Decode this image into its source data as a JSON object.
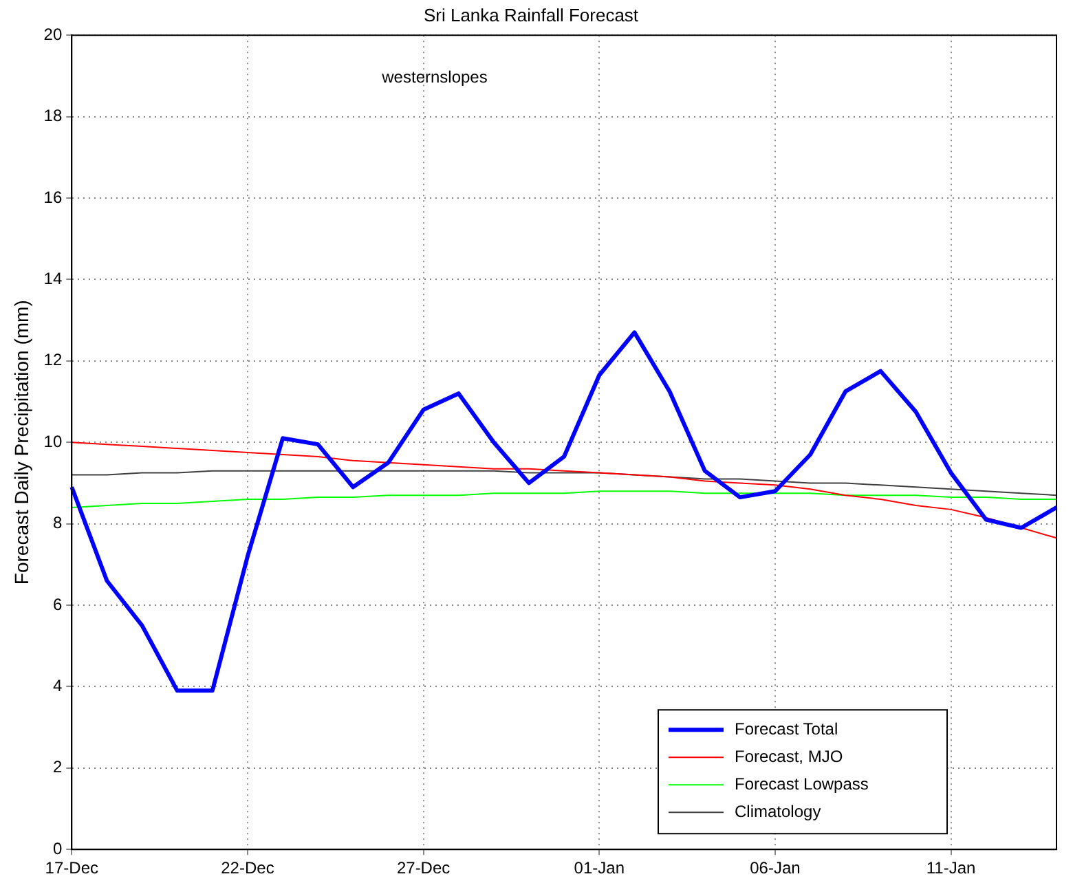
{
  "chart_data": {
    "type": "line",
    "title": "Sri Lanka Rainfall Forecast",
    "ylabel": "Forecast Daily Precipitation (mm)",
    "annotations": [
      "westernslopes"
    ],
    "categories": [
      "17-Dec",
      null,
      null,
      null,
      null,
      "22-Dec",
      null,
      null,
      null,
      null,
      "27-Dec",
      null,
      null,
      null,
      null,
      "01-Jan",
      null,
      null,
      null,
      null,
      "06-Jan",
      null,
      null,
      null,
      null,
      "11-Jan",
      null,
      null,
      null
    ],
    "ylim": [
      0,
      20
    ],
    "yticks": [
      0,
      2,
      4,
      6,
      8,
      10,
      12,
      14,
      16,
      18,
      20
    ],
    "grid": true,
    "legend": "bottom right",
    "marker": "none",
    "line_style": "solid",
    "series": [
      {
        "name": "Forecast Total",
        "color": "#0000ff",
        "values": [
          8.9,
          6.6,
          5.5,
          3.9,
          3.9,
          7.2,
          10.1,
          9.95,
          8.9,
          9.5,
          10.8,
          11.2,
          10.0,
          9.0,
          9.65,
          11.65,
          12.7,
          11.25,
          9.3,
          8.65,
          8.8,
          9.7,
          11.25,
          11.75,
          10.75,
          9.25,
          8.1,
          7.9,
          8.4
        ]
      },
      {
        "name": "Forecast, MJO",
        "color": "#ff0000",
        "values": [
          10.0,
          9.95,
          9.9,
          9.85,
          9.8,
          9.75,
          9.7,
          9.65,
          9.55,
          9.5,
          9.45,
          9.4,
          9.35,
          9.35,
          9.3,
          9.25,
          9.2,
          9.15,
          9.05,
          9.0,
          8.95,
          8.85,
          8.7,
          8.6,
          8.45,
          8.35,
          8.15,
          7.9,
          7.65
        ]
      },
      {
        "name": "Forecast Lowpass",
        "color": "#00ff00",
        "values": [
          8.4,
          8.45,
          8.5,
          8.5,
          8.55,
          8.6,
          8.6,
          8.65,
          8.65,
          8.7,
          8.7,
          8.7,
          8.75,
          8.75,
          8.75,
          8.8,
          8.8,
          8.8,
          8.75,
          8.75,
          8.75,
          8.75,
          8.7,
          8.7,
          8.7,
          8.65,
          8.65,
          8.6,
          8.6
        ]
      },
      {
        "name": "Climatology",
        "color": "#404040",
        "values": [
          9.2,
          9.2,
          9.25,
          9.25,
          9.3,
          9.3,
          9.3,
          9.3,
          9.3,
          9.3,
          9.3,
          9.3,
          9.3,
          9.25,
          9.25,
          9.25,
          9.2,
          9.15,
          9.1,
          9.1,
          9.05,
          9.0,
          9.0,
          8.95,
          8.9,
          8.85,
          8.8,
          8.75,
          8.7
        ]
      }
    ]
  }
}
